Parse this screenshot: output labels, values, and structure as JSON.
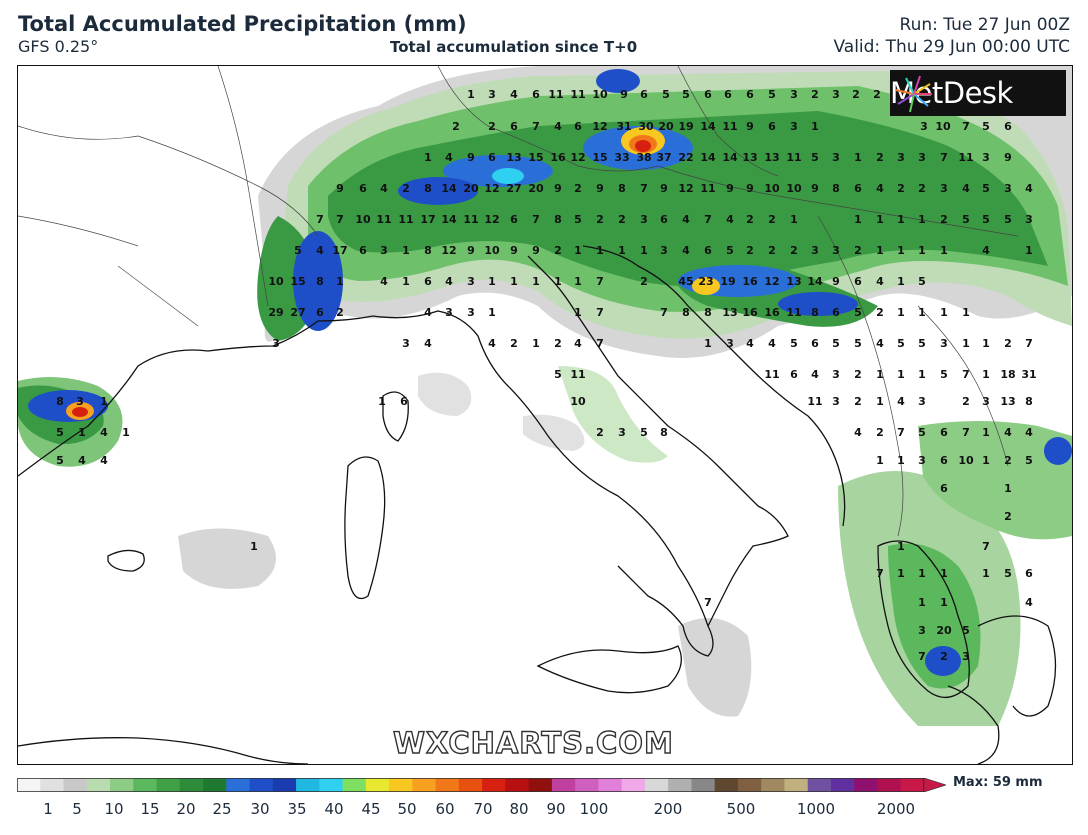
{
  "header": {
    "title": "Total Accumulated Precipitation (mm)",
    "model": "GFS 0.25°",
    "subtitle": "Total accumulation since T+0",
    "run": "Run: Tue 27 Jun 00Z",
    "valid": "Valid: Thu 29 Jun 00:00 UTC"
  },
  "logo": {
    "text": "MetDesk",
    "icon": "metdesk-star-icon"
  },
  "watermark": "WXCHARTS.COM",
  "legend": {
    "max_label": "Max: 59 mm",
    "ticks": [
      "1",
      "5",
      "10",
      "15",
      "20",
      "25",
      "30",
      "35",
      "40",
      "45",
      "50",
      "60",
      "70",
      "80",
      "90",
      "100",
      "200",
      "500",
      "1000",
      "2000"
    ],
    "colors": [
      "#f5f5f5",
      "#e0e0e0",
      "#c8c8c8",
      "#b8dcb0",
      "#8ccc84",
      "#5cb85c",
      "#3fa046",
      "#2e8b3a",
      "#1f7a30",
      "#2a6fd8",
      "#1e4fc8",
      "#1a3cb0",
      "#20b8e0",
      "#30d0f0",
      "#7ee060",
      "#e8e830",
      "#f8c820",
      "#f8a020",
      "#f07818",
      "#e85010",
      "#d82010",
      "#b81010",
      "#901010",
      "#c040a0",
      "#d060c0",
      "#e080d8",
      "#f0a8e8",
      "#d8d8d8",
      "#b0b0b0",
      "#888888",
      "#604830",
      "#806040",
      "#a08860",
      "#c0b080",
      "#7050a0",
      "#6030a0",
      "#901070",
      "#b01050",
      "#c81848"
    ]
  },
  "map": {
    "region": "Europe - Italy and surroundings",
    "max_value": 59,
    "labels": [
      {
        "v": "1"
      },
      {
        "v": "3"
      },
      {
        "v": "4"
      },
      {
        "v": "6"
      },
      {
        "v": "11"
      },
      {
        "v": "11"
      },
      {
        "v": "10"
      },
      {
        "v": "9"
      },
      {
        "v": "6"
      },
      {
        "v": "5"
      },
      {
        "v": "5"
      },
      {
        "v": "6"
      },
      {
        "v": "6"
      },
      {
        "v": "6"
      },
      {
        "v": "5"
      },
      {
        "v": "3"
      },
      {
        "v": "2"
      },
      {
        "v": "3"
      },
      {
        "v": "2"
      },
      {
        "v": "2"
      },
      {
        "v": "2"
      },
      {
        "v": "2"
      },
      {
        "v": "6"
      },
      {
        "v": "7"
      },
      {
        "v": "4"
      },
      {
        "v": "6"
      },
      {
        "v": "12"
      },
      {
        "v": "31"
      },
      {
        "v": "30"
      },
      {
        "v": "20"
      },
      {
        "v": "19"
      },
      {
        "v": "14"
      },
      {
        "v": "11"
      },
      {
        "v": "9"
      },
      {
        "v": "6"
      },
      {
        "v": "3"
      },
      {
        "v": "1"
      },
      {
        "v": "3"
      },
      {
        "v": "10"
      },
      {
        "v": "7"
      },
      {
        "v": "5"
      },
      {
        "v": "6"
      },
      {
        "v": "1"
      },
      {
        "v": "4"
      },
      {
        "v": "9"
      },
      {
        "v": "6"
      },
      {
        "v": "13"
      },
      {
        "v": "15"
      },
      {
        "v": "16"
      },
      {
        "v": "12"
      },
      {
        "v": "15"
      },
      {
        "v": "33"
      },
      {
        "v": "38"
      },
      {
        "v": "37"
      },
      {
        "v": "22"
      },
      {
        "v": "14"
      },
      {
        "v": "14"
      },
      {
        "v": "13"
      },
      {
        "v": "13"
      },
      {
        "v": "11"
      },
      {
        "v": "5"
      },
      {
        "v": "3"
      },
      {
        "v": "1"
      },
      {
        "v": "2"
      },
      {
        "v": "3"
      },
      {
        "v": "3"
      },
      {
        "v": "7"
      },
      {
        "v": "11"
      },
      {
        "v": "3"
      },
      {
        "v": "9"
      },
      {
        "v": "9"
      },
      {
        "v": "6"
      },
      {
        "v": "4"
      },
      {
        "v": "2"
      },
      {
        "v": "8"
      },
      {
        "v": "14"
      },
      {
        "v": "20"
      },
      {
        "v": "12"
      },
      {
        "v": "27"
      },
      {
        "v": "20"
      },
      {
        "v": "9"
      },
      {
        "v": "2"
      },
      {
        "v": "9"
      },
      {
        "v": "8"
      },
      {
        "v": "7"
      },
      {
        "v": "9"
      },
      {
        "v": "12"
      },
      {
        "v": "11"
      },
      {
        "v": "9"
      },
      {
        "v": "9"
      },
      {
        "v": "10"
      },
      {
        "v": "10"
      },
      {
        "v": "9"
      },
      {
        "v": "8"
      },
      {
        "v": "6"
      },
      {
        "v": "4"
      },
      {
        "v": "2"
      },
      {
        "v": "2"
      },
      {
        "v": "3"
      },
      {
        "v": "4"
      },
      {
        "v": "5"
      },
      {
        "v": "3"
      },
      {
        "v": "4"
      },
      {
        "v": "7"
      },
      {
        "v": "7"
      },
      {
        "v": "10"
      },
      {
        "v": "11"
      },
      {
        "v": "11"
      },
      {
        "v": "17"
      },
      {
        "v": "14"
      },
      {
        "v": "11"
      },
      {
        "v": "12"
      },
      {
        "v": "6"
      },
      {
        "v": "7"
      },
      {
        "v": "8"
      },
      {
        "v": "5"
      },
      {
        "v": "2"
      },
      {
        "v": "2"
      },
      {
        "v": "3"
      },
      {
        "v": "6"
      },
      {
        "v": "4"
      },
      {
        "v": "7"
      },
      {
        "v": "4"
      },
      {
        "v": "2"
      },
      {
        "v": "2"
      },
      {
        "v": "1"
      },
      {
        "v": "1"
      },
      {
        "v": "1"
      },
      {
        "v": "1"
      },
      {
        "v": "1"
      },
      {
        "v": "2"
      },
      {
        "v": "5"
      },
      {
        "v": "5"
      },
      {
        "v": "5"
      },
      {
        "v": "3"
      },
      {
        "v": "5"
      },
      {
        "v": "4"
      },
      {
        "v": "17"
      },
      {
        "v": "6"
      },
      {
        "v": "3"
      },
      {
        "v": "1"
      },
      {
        "v": "8"
      },
      {
        "v": "12"
      },
      {
        "v": "9"
      },
      {
        "v": "10"
      },
      {
        "v": "9"
      },
      {
        "v": "9"
      },
      {
        "v": "2"
      },
      {
        "v": "1"
      },
      {
        "v": "1"
      },
      {
        "v": "1"
      },
      {
        "v": "1"
      },
      {
        "v": "3"
      },
      {
        "v": "4"
      },
      {
        "v": "6"
      },
      {
        "v": "5"
      },
      {
        "v": "2"
      },
      {
        "v": "2"
      },
      {
        "v": "2"
      },
      {
        "v": "3"
      },
      {
        "v": "3"
      },
      {
        "v": "2"
      },
      {
        "v": "1"
      },
      {
        "v": "1"
      },
      {
        "v": "1"
      },
      {
        "v": "1"
      },
      {
        "v": "4"
      },
      {
        "v": "1"
      },
      {
        "v": "10"
      },
      {
        "v": "15"
      },
      {
        "v": "8"
      },
      {
        "v": "1"
      },
      {
        "v": "4"
      },
      {
        "v": "1"
      },
      {
        "v": "6"
      },
      {
        "v": "4"
      },
      {
        "v": "3"
      },
      {
        "v": "1"
      },
      {
        "v": "1"
      },
      {
        "v": "1"
      },
      {
        "v": "1"
      },
      {
        "v": "1"
      },
      {
        "v": "7"
      },
      {
        "v": "2"
      },
      {
        "v": "45"
      },
      {
        "v": "23"
      },
      {
        "v": "19"
      },
      {
        "v": "16"
      },
      {
        "v": "12"
      },
      {
        "v": "13"
      },
      {
        "v": "14"
      },
      {
        "v": "9"
      },
      {
        "v": "6"
      },
      {
        "v": "4"
      },
      {
        "v": "1"
      },
      {
        "v": "5"
      },
      {
        "v": "29"
      },
      {
        "v": "27"
      },
      {
        "v": "6"
      },
      {
        "v": "2"
      },
      {
        "v": "4"
      },
      {
        "v": "3"
      },
      {
        "v": "3"
      },
      {
        "v": "1"
      },
      {
        "v": "1"
      },
      {
        "v": "7"
      },
      {
        "v": "7"
      },
      {
        "v": "8"
      },
      {
        "v": "8"
      },
      {
        "v": "13"
      },
      {
        "v": "16"
      },
      {
        "v": "16"
      },
      {
        "v": "11"
      },
      {
        "v": "8"
      },
      {
        "v": "6"
      },
      {
        "v": "5"
      },
      {
        "v": "2"
      },
      {
        "v": "1"
      },
      {
        "v": "1"
      },
      {
        "v": "1"
      },
      {
        "v": "1"
      },
      {
        "v": "3"
      },
      {
        "v": "3"
      },
      {
        "v": "4"
      },
      {
        "v": "4"
      },
      {
        "v": "2"
      },
      {
        "v": "1"
      },
      {
        "v": "2"
      },
      {
        "v": "4"
      },
      {
        "v": "7"
      },
      {
        "v": "1"
      },
      {
        "v": "3"
      },
      {
        "v": "4"
      },
      {
        "v": "4"
      },
      {
        "v": "5"
      },
      {
        "v": "6"
      },
      {
        "v": "5"
      },
      {
        "v": "5"
      },
      {
        "v": "4"
      },
      {
        "v": "5"
      },
      {
        "v": "5"
      },
      {
        "v": "3"
      },
      {
        "v": "1"
      },
      {
        "v": "1"
      },
      {
        "v": "2"
      },
      {
        "v": "7"
      },
      {
        "v": "5"
      },
      {
        "v": "11"
      },
      {
        "v": "11"
      },
      {
        "v": "6"
      },
      {
        "v": "4"
      },
      {
        "v": "3"
      },
      {
        "v": "2"
      },
      {
        "v": "1"
      },
      {
        "v": "1"
      },
      {
        "v": "1"
      },
      {
        "v": "5"
      },
      {
        "v": "7"
      },
      {
        "v": "1"
      },
      {
        "v": "18"
      },
      {
        "v": "31"
      },
      {
        "v": "8"
      },
      {
        "v": "3"
      },
      {
        "v": "1"
      },
      {
        "v": "1"
      },
      {
        "v": "6"
      },
      {
        "v": "10"
      },
      {
        "v": "11"
      },
      {
        "v": "3"
      },
      {
        "v": "2"
      },
      {
        "v": "1"
      },
      {
        "v": "4"
      },
      {
        "v": "3"
      },
      {
        "v": "2"
      },
      {
        "v": "3"
      },
      {
        "v": "13"
      },
      {
        "v": "8"
      },
      {
        "v": "5"
      },
      {
        "v": "1"
      },
      {
        "v": "4"
      },
      {
        "v": "1"
      },
      {
        "v": "2"
      },
      {
        "v": "3"
      },
      {
        "v": "5"
      },
      {
        "v": "8"
      },
      {
        "v": "4"
      },
      {
        "v": "2"
      },
      {
        "v": "7"
      },
      {
        "v": "5"
      },
      {
        "v": "6"
      },
      {
        "v": "7"
      },
      {
        "v": "1"
      },
      {
        "v": "4"
      },
      {
        "v": "4"
      },
      {
        "v": "5"
      },
      {
        "v": "4"
      },
      {
        "v": "4"
      },
      {
        "v": "1"
      },
      {
        "v": "1"
      },
      {
        "v": "3"
      },
      {
        "v": "6"
      },
      {
        "v": "10"
      },
      {
        "v": "1"
      },
      {
        "v": "2"
      },
      {
        "v": "5"
      },
      {
        "v": "6"
      },
      {
        "v": "1"
      },
      {
        "v": "2"
      },
      {
        "v": "1"
      },
      {
        "v": "1"
      },
      {
        "v": "7"
      },
      {
        "v": "7"
      },
      {
        "v": "1"
      },
      {
        "v": "1"
      },
      {
        "v": "1"
      },
      {
        "v": "1"
      },
      {
        "v": "5"
      },
      {
        "v": "6"
      },
      {
        "v": "1"
      },
      {
        "v": "1"
      },
      {
        "v": "7"
      },
      {
        "v": "4"
      },
      {
        "v": "3"
      },
      {
        "v": "20"
      },
      {
        "v": "5"
      },
      {
        "v": "7"
      },
      {
        "v": "2"
      },
      {
        "v": "3"
      }
    ]
  }
}
